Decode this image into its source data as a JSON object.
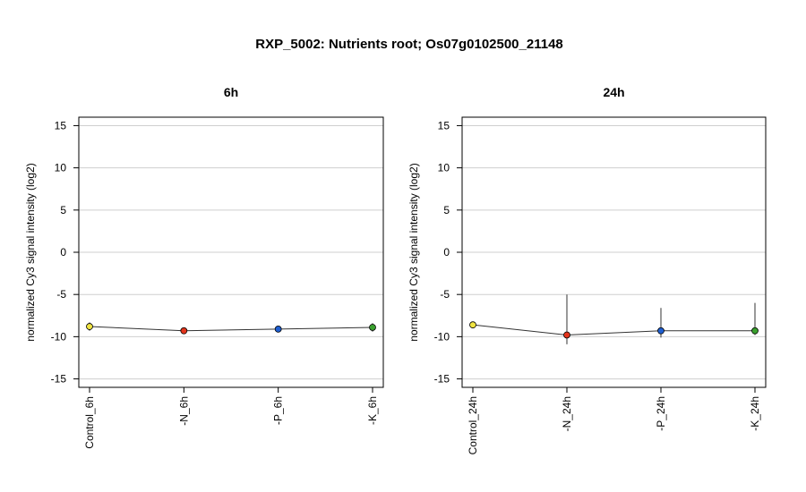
{
  "title": "RXP_5002: Nutrients root; Os07g0102500_21148",
  "chart_data": [
    {
      "type": "line",
      "title": "6h",
      "ylabel": "normalized Cy3 signal intensity (log2)",
      "ylim": [
        -16,
        16
      ],
      "yticks": [
        -15,
        -10,
        -5,
        0,
        5,
        10,
        15
      ],
      "grid": true,
      "categories": [
        "Control_6h",
        "-N_6h",
        "-P_6h",
        "-K_6h"
      ],
      "values": [
        -8.8,
        -9.3,
        -9.1,
        -8.9
      ],
      "err_low": [
        -9.3,
        -9.5,
        -9.3,
        -9.4
      ],
      "err_high": [
        -8.3,
        -9.1,
        -8.9,
        -8.4
      ],
      "point_colors": [
        "#f0e442",
        "#e3341b",
        "#1f5fd1",
        "#3aa02e"
      ]
    },
    {
      "type": "line",
      "title": "24h",
      "ylabel": "normalized Cy3 signal intensity (log2)",
      "ylim": [
        -16,
        16
      ],
      "yticks": [
        -15,
        -10,
        -5,
        0,
        5,
        10,
        15
      ],
      "grid": true,
      "categories": [
        "Control_24h",
        "-N_24h",
        "-P_24h",
        "-K_24h"
      ],
      "values": [
        -8.6,
        -9.8,
        -9.3,
        -9.3
      ],
      "err_low": [
        -8.9,
        -10.9,
        -10.1,
        -9.8
      ],
      "err_high": [
        -8.3,
        -5.0,
        -6.6,
        -6.0
      ],
      "point_colors": [
        "#f0e442",
        "#e3341b",
        "#1f5fd1",
        "#3aa02e"
      ]
    }
  ]
}
